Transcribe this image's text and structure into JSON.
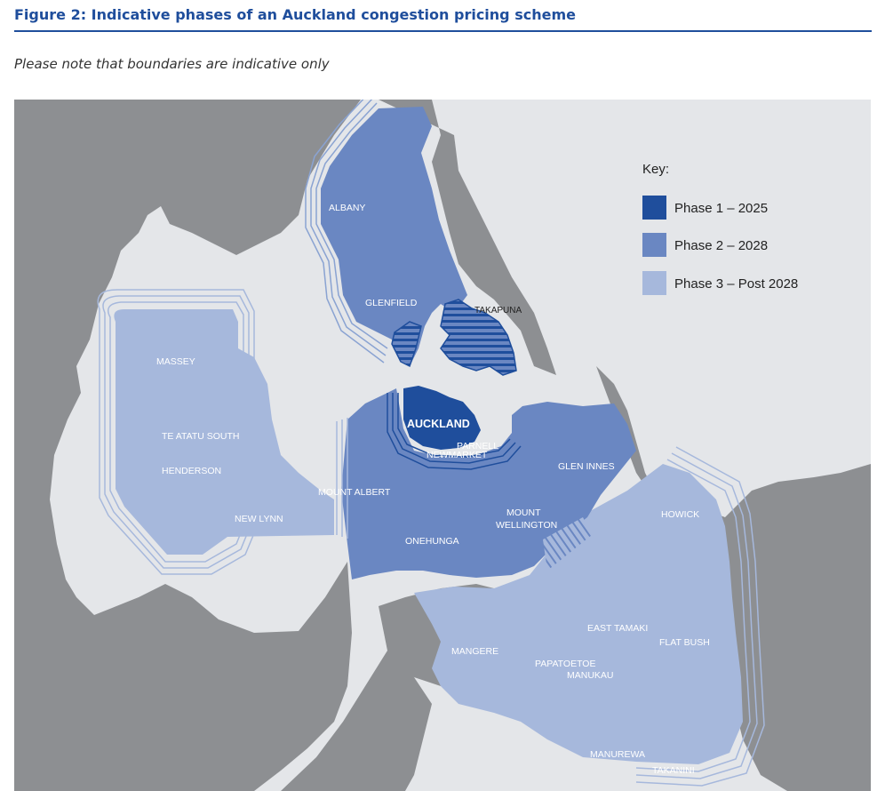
{
  "figure": {
    "title": "Figure 2: Indicative phases of an Auckland congestion pricing scheme",
    "note": "Please note that boundaries are indicative only"
  },
  "colors": {
    "water": "#e4e6e9",
    "land": "#8d8f92",
    "phase1": "#1f4e9c",
    "phase2": "#6a87c2",
    "phase3": "#a6b8dc",
    "title": "#1f4e9c"
  },
  "key": {
    "heading": "Key:",
    "items": [
      {
        "label": "Phase 1 – 2025",
        "color": "#1f4e9c"
      },
      {
        "label": "Phase 2 – 2028",
        "color": "#6a87c2"
      },
      {
        "label": "Phase 3 – Post 2028",
        "color": "#a6b8dc"
      }
    ]
  },
  "places": {
    "albany": "ALBANY",
    "glenfield": "GLENFIELD",
    "takapuna": "TAKAPUNA",
    "massey": "MASSEY",
    "te_atatu_south": "TE ATATU SOUTH",
    "henderson": "HENDERSON",
    "new_lynn": "NEW LYNN",
    "mount_albert": "MOUNT ALBERT",
    "auckland": "AUCKLAND",
    "parnell": "PARNELL",
    "newmarket": "NEWMARKET",
    "glen_innes": "GLEN INNES",
    "mount_wellington_1": "MOUNT",
    "mount_wellington_2": "WELLINGTON",
    "onehunga": "ONEHUNGA",
    "howick": "HOWICK",
    "east_tamaki": "EAST TAMAKI",
    "flat_bush": "FLAT BUSH",
    "mangere": "MANGERE",
    "papatoetoe": "PAPATOETOE",
    "manukau": "MANUKAU",
    "manurewa": "MANUREWA",
    "takanini": "TAKANINI"
  }
}
